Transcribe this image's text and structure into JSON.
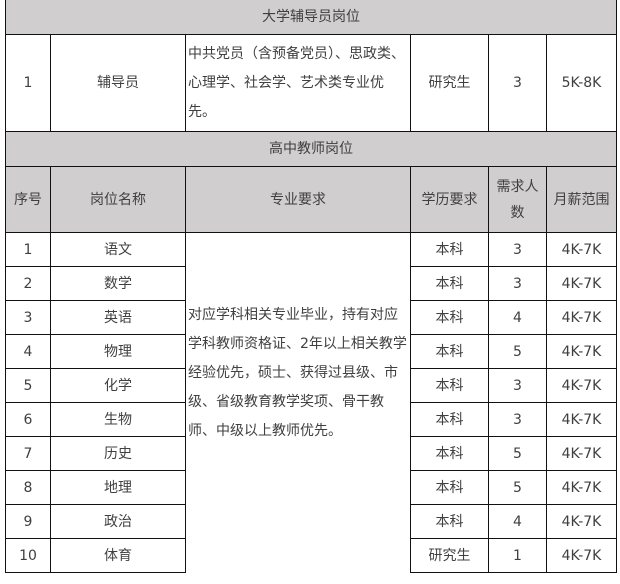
{
  "section1": {
    "title": "大学辅导员岗位",
    "row": {
      "no": "1",
      "name": "辅导员",
      "major": "中共党员（含预备党员）、思政类、心理学、社会学、艺术类专业优先。",
      "edu": "研究生",
      "count": "3",
      "salary": "5K-8K"
    }
  },
  "section2": {
    "title": "高中教师岗位",
    "headers": [
      "序号",
      "岗位名称",
      "专业要求",
      "学历要求",
      "需求人数",
      "月薪范围"
    ],
    "major": "对应学科相关专业毕业，持有对应学科教师资格证、2年以上相关教学经验优先，硕士、获得过县级、市级、省级教育教学奖项、骨干教师、中级以上教师优先。",
    "rows": [
      {
        "no": "1",
        "name": "语文",
        "edu": "本科",
        "count": "3",
        "salary": "4K-7K"
      },
      {
        "no": "2",
        "name": "数学",
        "edu": "本科",
        "count": "3",
        "salary": "4K-7K"
      },
      {
        "no": "3",
        "name": "英语",
        "edu": "本科",
        "count": "4",
        "salary": "4K-7K"
      },
      {
        "no": "4",
        "name": "物理",
        "edu": "本科",
        "count": "5",
        "salary": "4K-7K"
      },
      {
        "no": "5",
        "name": "化学",
        "edu": "本科",
        "count": "3",
        "salary": "4K-7K"
      },
      {
        "no": "6",
        "name": "生物",
        "edu": "本科",
        "count": "3",
        "salary": "4K-7K"
      },
      {
        "no": "7",
        "name": "历史",
        "edu": "本科",
        "count": "5",
        "salary": "4K-7K"
      },
      {
        "no": "8",
        "name": "地理",
        "edu": "本科",
        "count": "5",
        "salary": "4K-7K"
      },
      {
        "no": "9",
        "name": "政治",
        "edu": "本科",
        "count": "4",
        "salary": "4K-7K"
      },
      {
        "no": "10",
        "name": "体育",
        "edu": "研究生",
        "count": "1",
        "salary": "4K-7K"
      }
    ]
  }
}
